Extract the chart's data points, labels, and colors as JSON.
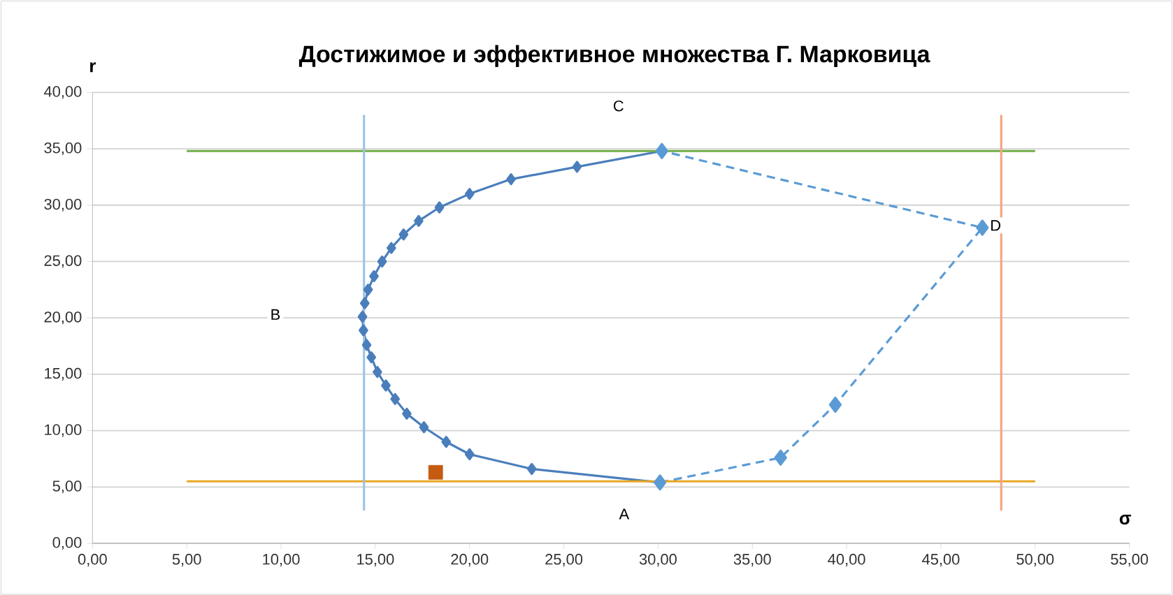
{
  "chart_data": {
    "type": "line",
    "title": "Достижимое и эффективное множества Г. Марковица",
    "xlabel": "σ",
    "ylabel": "r",
    "xlim": [
      0,
      55
    ],
    "ylim": [
      0,
      40
    ],
    "xticks": [
      {
        "value": 0,
        "label": "0,00"
      },
      {
        "value": 5,
        "label": "5,00"
      },
      {
        "value": 10,
        "label": "10,00"
      },
      {
        "value": 15,
        "label": "15,00"
      },
      {
        "value": 20,
        "label": "20,00"
      },
      {
        "value": 25,
        "label": "25,00"
      },
      {
        "value": 30,
        "label": "30,00"
      },
      {
        "value": 35,
        "label": "35,00"
      },
      {
        "value": 40,
        "label": "40,00"
      },
      {
        "value": 45,
        "label": "45,00"
      },
      {
        "value": 50,
        "label": "50,00"
      },
      {
        "value": 55,
        "label": "55,00"
      }
    ],
    "yticks": [
      {
        "value": 0,
        "label": "0,00"
      },
      {
        "value": 5,
        "label": "5,00"
      },
      {
        "value": 10,
        "label": "10,00"
      },
      {
        "value": 15,
        "label": "15,00"
      },
      {
        "value": 20,
        "label": "20,00"
      },
      {
        "value": 25,
        "label": "25,00"
      },
      {
        "value": 30,
        "label": "30,00"
      },
      {
        "value": 35,
        "label": "35,00"
      },
      {
        "value": 40,
        "label": "40,00"
      }
    ],
    "grid": "y",
    "series": [
      {
        "color": "#4a7ebb",
        "marker": "diamond",
        "line_style": "solid",
        "x": [
          30.2,
          25.7,
          22.2,
          20.0,
          18.4,
          17.3,
          16.5,
          15.85,
          15.36,
          14.93,
          14.62,
          14.44,
          14.32,
          14.37,
          14.54,
          14.79,
          15.11,
          15.56,
          16.05,
          16.67,
          17.58,
          18.76,
          20.0,
          23.3,
          30.1
        ],
        "values": [
          34.8,
          33.4,
          32.3,
          31.0,
          29.8,
          28.6,
          27.4,
          26.2,
          25.0,
          23.7,
          22.5,
          21.3,
          20.1,
          18.9,
          17.6,
          16.5,
          15.2,
          14.0,
          12.8,
          11.5,
          10.3,
          9.0,
          7.9,
          6.6,
          5.4
        ]
      },
      {
        "color": "#5b9bd5",
        "marker": "diamond",
        "line_style": "dashed",
        "x": [
          30.1,
          36.5,
          39.4,
          47.2,
          30.2
        ],
        "values": [
          5.4,
          7.6,
          12.3,
          28.0,
          34.8
        ]
      },
      {
        "color": "#70ad47",
        "marker": "none",
        "line_style": "solid",
        "x": [
          5,
          50
        ],
        "values": [
          34.8,
          34.8
        ]
      },
      {
        "color": "#e8a723",
        "marker": "none",
        "line_style": "solid",
        "x": [
          5,
          50
        ],
        "values": [
          5.5,
          5.5
        ]
      },
      {
        "color": "#9dc3e6",
        "marker": "none",
        "line_style": "solid",
        "x": [
          14.4,
          14.4
        ],
        "values": [
          2.9,
          38.0
        ]
      },
      {
        "color": "#f4a582",
        "marker": "none",
        "line_style": "solid",
        "x": [
          48.2,
          48.2
        ],
        "values": [
          2.9,
          38.0
        ]
      },
      {
        "type": "scatter",
        "color": "#c55a11",
        "marker": "square",
        "x": [
          18.2
        ],
        "values": [
          6.3
        ]
      }
    ],
    "annotations": [
      {
        "text": "A",
        "x": 28.2,
        "y": 2.6
      },
      {
        "text": "B",
        "x": 9.7,
        "y": 20.3
      },
      {
        "text": "C",
        "x": 27.9,
        "y": 38.8
      },
      {
        "text": "D",
        "x": 47.9,
        "y": 28.2
      }
    ]
  }
}
